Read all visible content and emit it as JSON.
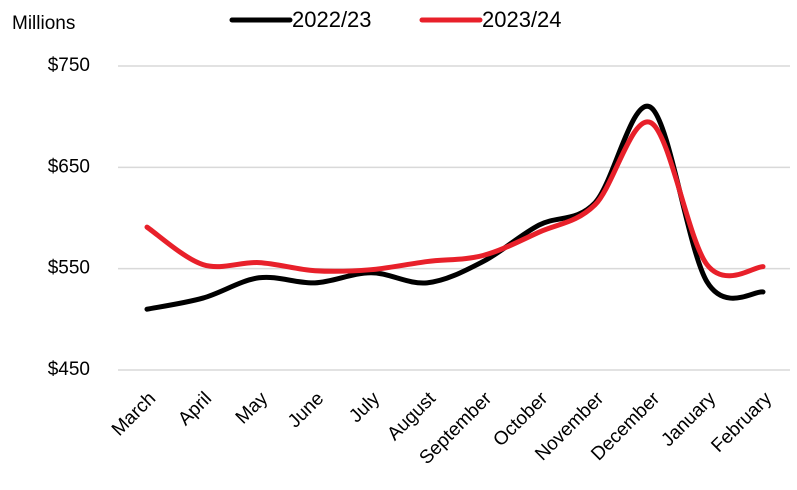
{
  "chart_data": {
    "type": "line",
    "y_unit_label": "Millions",
    "categories": [
      "March",
      "April",
      "May",
      "June",
      "July",
      "August",
      "September",
      "October",
      "November",
      "December",
      "January",
      "February"
    ],
    "series": [
      {
        "name": "2022/23",
        "color": "#000000",
        "values": [
          510,
          521,
          541,
          536,
          546,
          536,
          557,
          593,
          615,
          709,
          537,
          527
        ]
      },
      {
        "name": "2023/24",
        "color": "#e8202a",
        "values": [
          591,
          554,
          556,
          548,
          549,
          557,
          563,
          586,
          613,
          694,
          554,
          552
        ]
      }
    ],
    "ylim": [
      450,
      750
    ],
    "yticks": [
      {
        "value": 450,
        "label": "$450"
      },
      {
        "value": 550,
        "label": "$550"
      },
      {
        "value": 650,
        "label": "$650"
      },
      {
        "value": 750,
        "label": "$750"
      }
    ],
    "grid": true,
    "legend": "top"
  }
}
